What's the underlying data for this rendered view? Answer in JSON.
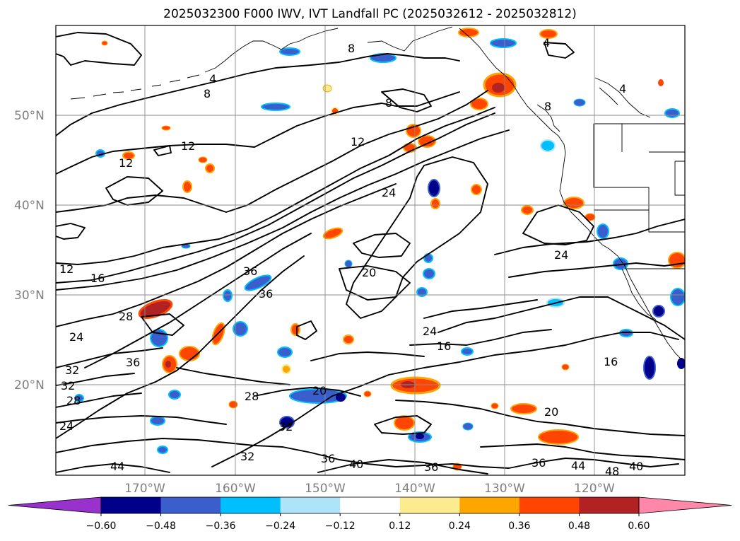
{
  "title": "2025032300 F000 IWV, IVT Landfall PC (2025032612 - 2025032812)",
  "lat_labels": [
    "50°N",
    "40°N",
    "30°N",
    "20°N"
  ],
  "lon_labels": [
    "170°W",
    "160°W",
    "150°W",
    "140°W",
    "130°W",
    "120°W"
  ],
  "contour_labels": [
    "4",
    "8",
    "8",
    "8",
    "12",
    "12",
    "12",
    "12",
    "16",
    "16",
    "16",
    "20",
    "20",
    "24",
    "24",
    "24",
    "24",
    "28",
    "28",
    "32",
    "32",
    "32",
    "36",
    "36",
    "36",
    "36",
    "36",
    "40",
    "40",
    "44",
    "44",
    "48",
    "4",
    "8",
    "4",
    "36",
    "32",
    "24",
    "28",
    "20"
  ],
  "colorbar": {
    "ticks": [
      "−0.60",
      "−0.48",
      "−0.36",
      "−0.24",
      "−0.12",
      "0.12",
      "0.24",
      "0.36",
      "0.48",
      "0.60"
    ],
    "colors": [
      "#9932cc",
      "#00008b",
      "#3a5fcd",
      "#00bfff",
      "#aee4fa",
      "#ffffff",
      "#fdec8f",
      "#ffa500",
      "#ff4500",
      "#b22222",
      "#ff88aa"
    ]
  },
  "shading_colors": {
    "neg_strong": "#00008b",
    "neg_mid": "#3a5fcd",
    "neg_light": "#00bfff",
    "neg_pale": "#aee4fa",
    "pos_pale": "#fdec8f",
    "pos_light": "#ffa500",
    "pos_mid": "#ff4500",
    "pos_strong": "#b22222"
  }
}
